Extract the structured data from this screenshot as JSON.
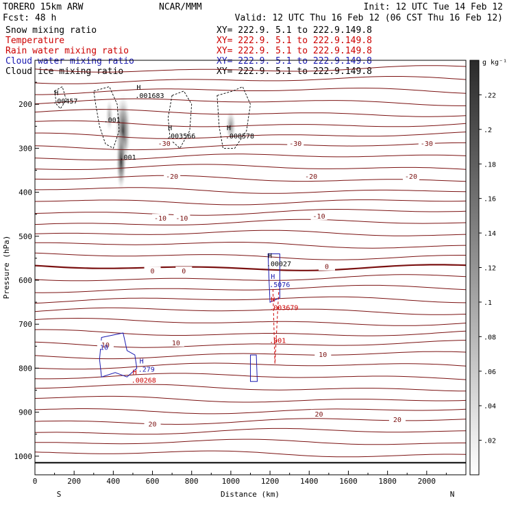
{
  "header": {
    "model": "TORERO  15km ARW",
    "org": "NCAR/MMM",
    "init": "Init: 12 UTC Tue 14 Feb 12",
    "fcst": "Fcst:   48 h",
    "valid": "Valid: 12 UTC Thu 16 Feb 12 (06 CST Thu 16 Feb 12)"
  },
  "fields": [
    {
      "name": "Snow mixing ratio",
      "xy": "",
      "color": "#000000"
    },
    {
      "name": "Temperature",
      "xy": "XY= 222.9.  5.1 to 222.9.149.8",
      "color": "#cc0000"
    },
    {
      "name": "Rain water mixing ratio",
      "xy": "XY= 222.9.  5.1 to 222.9.149.8",
      "color": "#cc0000"
    },
    {
      "name": "Cloud water mixing ratio",
      "xy": "XY= 222.9.  5.1 to 222.9.149.8",
      "color": "#1a1ab0"
    },
    {
      "name": "Cloud ice mixing ratio",
      "xy": "XY= 222.9.  5.1 to 222.9.149.8",
      "color": "#000000"
    }
  ],
  "top_xy": "XY= 222.9.  5.1 to 222.9.149.8",
  "chart_data": {
    "type": "cross-section",
    "xlabel": "Distance (km)",
    "ylabel": "Pressure (hPa)",
    "xlim": [
      0,
      2200
    ],
    "ylim": [
      1050,
      100
    ],
    "x_ticks": [
      0,
      200,
      400,
      600,
      800,
      1000,
      1200,
      1400,
      1600,
      1800,
      2000
    ],
    "y_ticks": [
      200,
      300,
      400,
      500,
      600,
      700,
      800,
      900,
      1000
    ],
    "left_end": "S",
    "right_end": "N",
    "colorbar": {
      "unit": "g kg⁻¹",
      "ticks": [
        ".02",
        ".04",
        ".06",
        ".08",
        ".1",
        ".12",
        ".14",
        ".16",
        ".18",
        ".2",
        ".22"
      ],
      "range": [
        0,
        0.24
      ]
    },
    "temperature_labels": [
      {
        "text": "-30",
        "x": 660,
        "p": 290
      },
      {
        "text": "-30",
        "x": 1330,
        "p": 290
      },
      {
        "text": "-30",
        "x": 2000,
        "p": 290
      },
      {
        "text": "-20",
        "x": 700,
        "p": 365
      },
      {
        "text": "-20",
        "x": 1410,
        "p": 365
      },
      {
        "text": "-20",
        "x": 1920,
        "p": 365
      },
      {
        "text": "-10",
        "x": 640,
        "p": 460
      },
      {
        "text": "-10",
        "x": 750,
        "p": 460
      },
      {
        "text": "-10",
        "x": 1450,
        "p": 455
      },
      {
        "text": "0",
        "x": 600,
        "p": 580
      },
      {
        "text": "0",
        "x": 760,
        "p": 580
      },
      {
        "text": "0",
        "x": 1490,
        "p": 570
      },
      {
        "text": "10",
        "x": 360,
        "p": 748
      },
      {
        "text": "10",
        "x": 720,
        "p": 743
      },
      {
        "text": "10",
        "x": 1470,
        "p": 770
      },
      {
        "text": "20",
        "x": 600,
        "p": 928
      },
      {
        "text": "20",
        "x": 1450,
        "p": 905
      },
      {
        "text": "20",
        "x": 1850,
        "p": 918
      }
    ],
    "maxima": [
      {
        "label": "H",
        "value": ".00457",
        "x": 120,
        "p": 190,
        "color": "#000000"
      },
      {
        "label": "H",
        "value": ".001683",
        "x": 540,
        "p": 178,
        "color": "#000000"
      },
      {
        "label": "H",
        "value": ".003566",
        "x": 700,
        "p": 270,
        "color": "#000000"
      },
      {
        "label": "H",
        "value": ".008578",
        "x": 1000,
        "p": 270,
        "color": "#000000"
      },
      {
        "label": "",
        "value": ".001",
        "x": 380,
        "p": 233,
        "color": "#000000"
      },
      {
        "label": "",
        "value": ".001",
        "x": 460,
        "p": 318,
        "color": "#000000"
      },
      {
        "label": "H",
        "value": ".00027",
        "x": 1210,
        "p": 560,
        "color": "#000000"
      },
      {
        "label": "H",
        "value": ".5076",
        "x": 1225,
        "p": 608,
        "color": "#1a1ab0"
      },
      {
        "label": "H",
        "value": ".003679",
        "x": 1225,
        "p": 660,
        "color": "#cc0000"
      },
      {
        "label": "",
        "value": ".001",
        "x": 1225,
        "p": 735,
        "color": "#cc0000"
      },
      {
        "label": "H",
        "value": ".279",
        "x": 555,
        "p": 800,
        "color": "#1a1ab0"
      },
      {
        "label": "H",
        "value": ".00268",
        "x": 520,
        "p": 825,
        "color": "#cc0000"
      },
      {
        "label": "",
        "value": "10",
        "x": 360,
        "p": 750,
        "color": "#1a1ab0"
      }
    ]
  }
}
